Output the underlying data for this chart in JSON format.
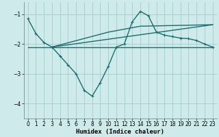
{
  "xlabel": "Humidex (Indice chaleur)",
  "background_color": "#ceeaea",
  "grid_color": "#aacfcf",
  "line_color": "#1a6b6b",
  "xlim": [
    -0.5,
    23.5
  ],
  "ylim": [
    -4.5,
    -0.6
  ],
  "yticks": [
    -4,
    -3,
    -2,
    -1
  ],
  "xticks": [
    0,
    1,
    2,
    3,
    4,
    5,
    6,
    7,
    8,
    9,
    10,
    11,
    12,
    13,
    14,
    15,
    16,
    17,
    18,
    19,
    20,
    21,
    22,
    23
  ],
  "line1_x": [
    0,
    1,
    2,
    3,
    4,
    5,
    6,
    7,
    8,
    9,
    10,
    11,
    12,
    13,
    14,
    15,
    16,
    17,
    18,
    19,
    20,
    21,
    22,
    23
  ],
  "line1_y": [
    -1.15,
    -1.65,
    -1.95,
    -2.1,
    -2.4,
    -2.7,
    -3.0,
    -3.55,
    -3.75,
    -3.3,
    -2.75,
    -2.1,
    -2.0,
    -1.25,
    -0.9,
    -1.05,
    -1.6,
    -1.7,
    -1.75,
    -1.8,
    -1.82,
    -1.88,
    -2.0,
    -2.1
  ],
  "line2_x": [
    0,
    23
  ],
  "line2_y": [
    -2.1,
    -2.1
  ],
  "line3_x": [
    3,
    23
  ],
  "line3_y": [
    -2.1,
    -1.35
  ],
  "line4_x": [
    3,
    10,
    14,
    23
  ],
  "line4_y": [
    -2.1,
    -1.6,
    -1.4,
    -1.35
  ]
}
